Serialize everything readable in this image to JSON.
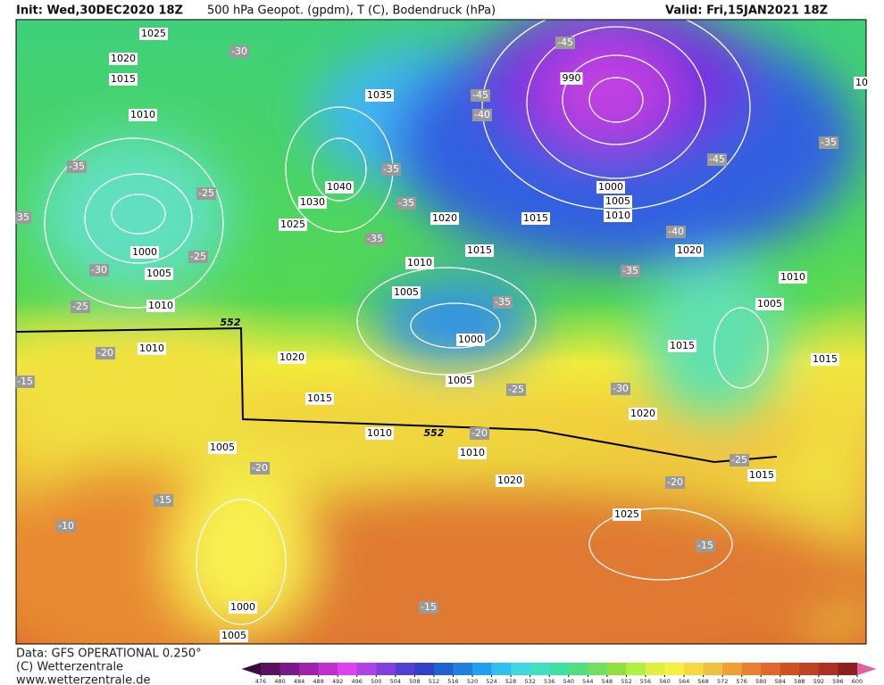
{
  "header": {
    "init": "Init: Wed,30DEC2020 18Z",
    "description": "500 hPa Geopot. (gpdm), T (C), Bodendruck (hPa)",
    "valid": "Valid: Fri,15JAN2021 18Z"
  },
  "isobar_labels": [
    1025,
    1020,
    1015,
    1010,
    1035,
    990,
    1040,
    1030,
    1025,
    1020,
    1015,
    1000,
    1005,
    1010,
    1015,
    1010,
    1005,
    1000,
    1005,
    1010,
    1000,
    1020,
    1010,
    1005,
    1015,
    1015,
    1010,
    1020,
    1015,
    1005,
    1020,
    1010,
    1010,
    1005,
    1020,
    1015,
    1025,
    1000,
    1005,
    10
  ],
  "geopotential_labels": [
    552,
    552
  ],
  "temperature_labels": [
    -30,
    -45,
    -45,
    -40,
    -35,
    -25,
    -35,
    -35,
    -35,
    -25,
    -30,
    -25,
    35,
    -40,
    -35,
    -35,
    -45,
    -35,
    -20,
    -15,
    -25,
    -30,
    -20,
    -20,
    -15,
    -10,
    -20,
    -25,
    -15,
    -15
  ],
  "footer": {
    "source": "Data: GFS OPERATIONAL 0.250°",
    "copyright": "(C) Wetterzentrale",
    "website": "www.wetterzentrale.de"
  },
  "scale": {
    "ticks": [
      476,
      480,
      484,
      488,
      492,
      496,
      500,
      504,
      508,
      512,
      516,
      520,
      524,
      528,
      532,
      536,
      540,
      544,
      548,
      552,
      556,
      560,
      564,
      568,
      572,
      576,
      580,
      584,
      588,
      592,
      596,
      600
    ],
    "colors": [
      "#3a0a3f",
      "#5a1060",
      "#7a1a8a",
      "#a020b0",
      "#c030d0",
      "#e040f0",
      "#b040e8",
      "#8040e0",
      "#5040d8",
      "#3040c8",
      "#2060d0",
      "#2080e0",
      "#20a0f0",
      "#30c0f0",
      "#40d8e0",
      "#40e0c0",
      "#40e0a0",
      "#50e080",
      "#70e060",
      "#90e040",
      "#b0f040",
      "#e0f040",
      "#f8f040",
      "#f8d840",
      "#f0c040",
      "#f0a030",
      "#e88030",
      "#e06828",
      "#d05020",
      "#c04020",
      "#b03020",
      "#902020",
      "#e060a0"
    ]
  }
}
